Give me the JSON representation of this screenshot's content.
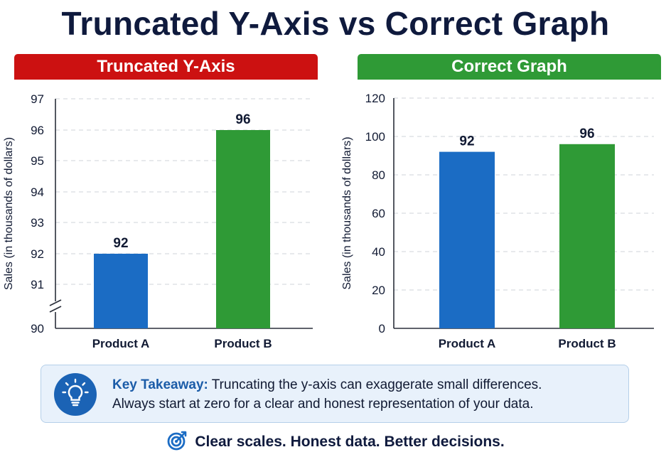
{
  "title": "Truncated Y-Axis vs Correct Graph",
  "colors": {
    "red": "#cc1111",
    "green": "#2f9a36",
    "blue": "#1b6cc4",
    "dark": "#0f1a3d"
  },
  "chart_data": [
    {
      "type": "bar",
      "title": "Truncated Y-Axis",
      "ylabel": "Sales (in thousands of dollars)",
      "categories": [
        "Product A",
        "Product B"
      ],
      "values": [
        92,
        96
      ],
      "value_labels": [
        "92",
        "96"
      ],
      "bar_colors": [
        "#1b6cc4",
        "#2f9a36"
      ],
      "ylim": [
        90,
        97
      ],
      "yticks": [
        "90",
        "91",
        "92",
        "93",
        "94",
        "95",
        "96",
        "97"
      ],
      "axis_break": true,
      "grid": "dashed horizontal"
    },
    {
      "type": "bar",
      "title": "Correct Graph",
      "ylabel": "Sales (in thousands of dollars)",
      "categories": [
        "Product A",
        "Product B"
      ],
      "values": [
        92,
        96
      ],
      "value_labels": [
        "92",
        "96"
      ],
      "bar_colors": [
        "#1b6cc4",
        "#2f9a36"
      ],
      "ylim": [
        0,
        120
      ],
      "yticks": [
        "0",
        "20",
        "40",
        "60",
        "80",
        "100",
        "120"
      ],
      "axis_break": false,
      "grid": "dashed horizontal"
    }
  ],
  "takeaway": {
    "label": "Key Takeaway:",
    "line1": " Truncating the y-axis can exaggerate small differences.",
    "line2": "Always start at zero for a clear and honest representation of your data.",
    "icon": "lightbulb-icon"
  },
  "footer": {
    "text": "Clear scales. Honest data. Better decisions.",
    "icon": "target-icon"
  }
}
